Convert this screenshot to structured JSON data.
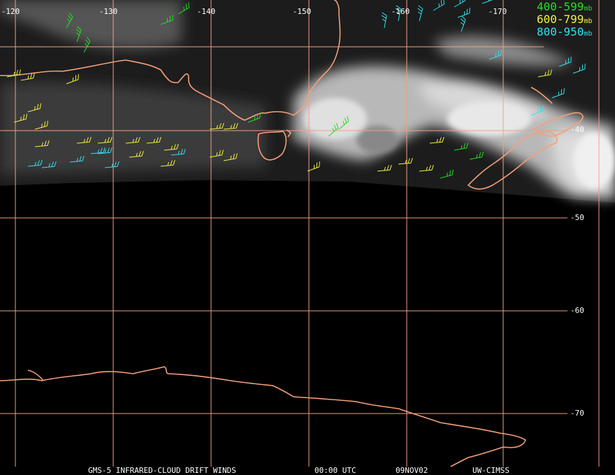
{
  "map": {
    "lon_labels": [
      "-120",
      "-130",
      "-140",
      "-150",
      "-160",
      "-170"
    ],
    "lat_labels": [
      "-40",
      "-50",
      "-60",
      "-70"
    ],
    "legend": [
      {
        "range": "400-599",
        "unit": "mb",
        "color": "#22e022"
      },
      {
        "range": "600-799",
        "unit": "mb",
        "color": "#f0f040"
      },
      {
        "range": "800-950",
        "unit": "mb",
        "color": "#30e0f0"
      }
    ],
    "footer": {
      "title": "GMS-5 INFRARED-CLOUD DRIFT WINDS",
      "time": "00:00 UTC",
      "date": "09NOV02",
      "source": "UW-CIMSS"
    }
  }
}
